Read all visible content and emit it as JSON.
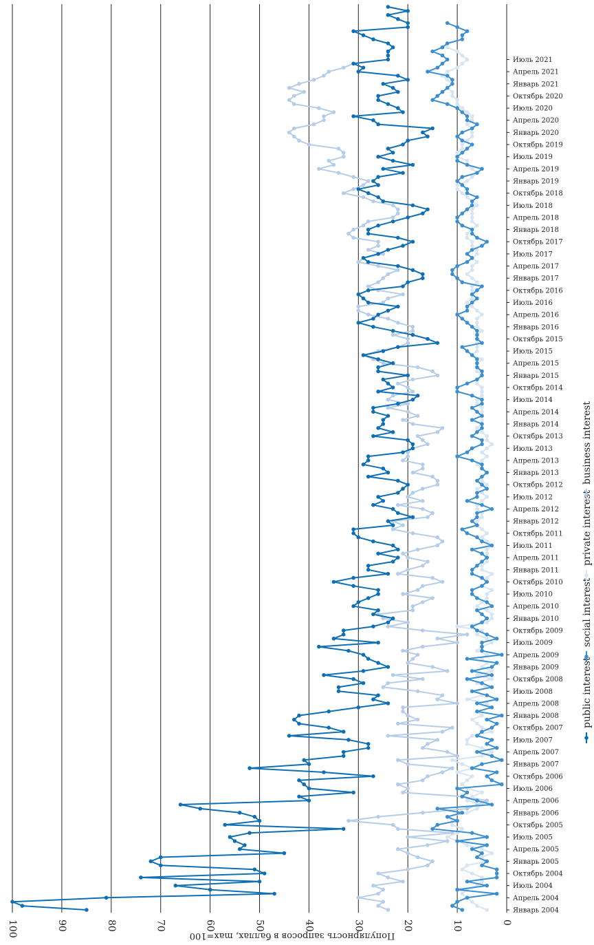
{
  "chart_data": {
    "type": "line",
    "orientation": "rotated-90-clockwise",
    "ylabel": "Популярность запросов в баллах, max=100",
    "ylim": [
      0,
      100
    ],
    "y_ticks": [
      "0",
      "10",
      "20",
      "30",
      "40",
      "50",
      "60",
      "70",
      "80",
      "90",
      "100"
    ],
    "grid": true,
    "legend_position": "right",
    "x_tick_labels": [
      "Январь 2004",
      "Апрель 2004",
      "Июль 2004",
      "Октябрь 2004",
      "Январь 2005",
      "Апрель 2005",
      "Июль 2005",
      "Октябрь 2005",
      "Январь 2006",
      "Апрель 2006",
      "Июль 2006",
      "Октябрь 2006",
      "Январь 2007",
      "Апрель 2007",
      "Июль 2007",
      "Октябрь 2007",
      "Январь 2008",
      "Апрель 2008",
      "Июль 2008",
      "Октябрь 2008",
      "Январь 2009",
      "Апрель 2009",
      "Июль 2009",
      "Октябрь 2009",
      "Январь 2010",
      "Апрель 2010",
      "Июль 2010",
      "Октябрь 2010",
      "Январь 2011",
      "Апрель 2011",
      "Июль 2011",
      "Октябрь 2011",
      "Январь 2012",
      "Апрель 2012",
      "Июль 2012",
      "Октябрь 2012",
      "Январь 2013",
      "Апрель 2013",
      "Июль 2013",
      "Октябрь 2013",
      "Январь 2014",
      "Апрель 2014",
      "Июль 2014",
      "Октябрь 2014",
      "Январь 2015",
      "Апрель 2015",
      "Июль 2015",
      "Октябрь 2015",
      "Январь 2016",
      "Апрель 2016",
      "Июль 2016",
      "Октябрь 2016",
      "Январь 2017",
      "Апрель 2017",
      "Июль 2017",
      "Октябрь 2017",
      "Январь 2018",
      "Апрель 2018",
      "Июль 2018",
      "Октябрь 2018",
      "Январь 2019",
      "Апрель 2019",
      "Июль 2019",
      "Октябрь 2019",
      "Январь 2020",
      "Апрель 2020",
      "Июль 2020",
      "Октябрь 2020",
      "Январь 2021",
      "Апрель 2021",
      "Июль 2021"
    ],
    "series": [
      {
        "name": "public interest",
        "color": "#0f6fb4",
        "values": [
          85,
          98,
          100,
          81,
          47,
          60,
          67,
          50,
          74,
          49,
          51,
          70,
          72,
          70,
          45,
          54,
          53,
          55,
          56,
          52,
          33,
          57,
          50,
          51,
          54,
          62,
          66,
          40,
          42,
          31,
          40,
          41,
          42,
          27,
          37,
          52,
          40,
          41,
          33,
          33,
          28,
          28,
          32,
          44,
          33,
          36,
          42,
          43,
          42,
          36,
          30,
          24,
          27,
          26,
          34,
          34,
          29,
          31,
          37,
          29,
          24,
          26,
          28,
          29,
          32,
          38,
          26,
          35,
          33,
          33,
          27,
          24,
          23,
          27,
          26,
          31,
          30,
          28,
          26,
          26,
          31,
          35,
          31,
          24,
          28,
          28,
          23,
          22,
          26,
          22,
          23,
          27,
          30,
          31,
          31,
          23,
          24,
          19,
          22,
          23,
          27,
          25,
          26,
          22,
          21,
          20,
          22,
          28,
          24,
          25,
          29,
          28,
          28,
          21,
          19,
          19,
          20,
          27,
          23,
          26,
          25,
          25,
          24,
          27,
          27,
          22,
          19,
          18,
          26,
          23,
          24,
          25,
          20,
          26,
          26,
          23,
          26,
          29,
          25,
          22,
          14,
          16,
          19,
          23,
          27,
          30,
          27,
          26,
          24,
          22,
          28,
          29,
          30,
          28,
          21,
          20,
          17,
          17,
          19,
          22,
          28,
          29,
          26,
          24,
          21,
          19,
          22,
          28,
          28,
          26,
          23,
          20,
          17,
          16,
          19,
          25,
          26,
          28,
          30,
          26,
          27,
          26,
          21,
          25,
          19,
          23,
          26,
          23,
          24,
          21,
          20,
          16,
          17,
          15,
          26,
          27,
          31,
          21,
          22,
          24,
          26,
          26,
          22,
          23,
          25,
          20,
          22,
          30,
          29,
          31,
          24,
          24,
          24,
          23,
          24,
          27,
          29,
          31,
          20,
          20,
          22,
          24,
          20,
          24
        ],
        "value_range": "varies"
      },
      {
        "name": "social interest",
        "color": "#3b8fd0",
        "values": [
          9,
          11,
          10,
          8,
          2,
          10,
          4,
          8,
          2,
          2,
          2,
          5,
          4,
          6,
          5,
          7,
          4,
          10,
          4,
          7,
          15,
          14,
          10,
          12,
          9,
          14,
          3,
          6,
          9,
          8,
          10,
          1,
          3,
          4,
          2,
          7,
          5,
          1,
          3,
          6,
          2,
          4,
          3,
          6,
          5,
          3,
          2,
          4,
          1,
          6,
          3,
          6,
          2,
          4,
          7,
          3,
          5,
          8,
          3,
          7,
          3,
          2,
          8,
          1,
          5,
          5,
          5,
          2,
          4,
          6,
          7,
          5,
          4,
          5,
          6,
          3,
          4,
          6,
          7,
          7,
          5,
          4,
          5,
          7,
          7,
          6,
          5,
          4,
          5,
          7,
          3,
          5,
          6,
          8,
          9,
          6,
          7,
          6,
          6,
          3,
          5,
          8,
          6,
          6,
          4,
          5,
          6,
          5,
          4,
          5,
          5,
          7,
          10,
          8,
          7,
          5,
          5,
          7,
          6,
          5,
          5,
          7,
          5,
          6,
          7,
          5,
          5,
          7,
          10,
          10,
          8,
          6,
          5,
          5,
          6,
          6,
          6,
          7,
          8,
          9,
          5,
          6,
          6,
          6,
          7,
          8,
          9,
          10,
          8,
          8,
          7,
          6,
          7,
          6,
          5,
          9,
          10,
          11,
          11,
          10,
          8,
          7,
          8,
          7,
          5,
          4,
          6,
          7,
          7,
          9,
          10,
          10,
          9,
          8,
          7,
          7,
          6,
          8,
          8,
          9,
          10,
          9,
          6,
          5,
          8,
          10,
          10,
          9,
          8,
          7,
          9,
          10,
          9,
          7,
          6,
          8,
          8,
          9,
          10,
          12,
          15,
          14,
          13,
          12,
          11,
          11,
          12,
          16,
          14,
          13,
          12,
          13,
          15,
          13,
          12,
          9,
          9,
          8,
          10,
          12
        ],
        "value_range": "varies"
      },
      {
        "name": "private interest",
        "color": "#d6e4f3",
        "values": [
          4,
          6,
          7,
          8,
          9,
          8,
          6,
          5,
          5,
          7,
          9,
          8,
          4,
          5,
          3,
          5,
          8,
          10,
          12,
          10,
          9,
          11,
          11,
          12,
          8,
          6,
          5,
          8,
          7,
          5,
          8,
          9,
          8,
          7,
          10,
          7,
          9,
          11,
          5,
          3,
          5,
          8,
          8,
          7,
          3,
          5,
          6,
          7,
          5,
          6,
          3,
          4,
          8,
          5,
          6,
          4,
          6,
          3,
          6,
          3,
          5,
          4,
          5,
          4,
          6,
          5,
          3,
          4,
          6,
          5,
          10,
          4,
          3,
          3,
          4,
          6,
          5,
          4,
          4,
          3,
          5,
          4,
          4,
          3,
          5,
          5,
          4,
          4,
          4,
          4,
          3,
          4,
          5,
          4,
          5,
          6,
          6,
          5,
          5,
          6,
          6,
          5,
          4,
          5,
          6,
          4,
          5,
          5,
          4,
          5,
          6,
          5,
          4,
          5,
          4,
          3,
          4,
          4,
          5,
          6,
          5,
          5,
          5,
          5,
          5,
          6,
          6,
          5,
          5,
          5,
          6,
          6,
          5,
          6,
          6,
          6,
          5,
          7,
          6,
          6,
          6,
          6,
          6,
          5,
          6,
          6,
          6,
          5,
          6,
          7,
          8,
          7,
          7,
          7,
          7,
          6,
          7,
          8,
          7,
          7,
          6,
          7,
          6,
          6,
          7,
          7,
          8,
          8,
          7,
          6,
          7,
          7,
          7,
          7,
          6,
          7,
          8,
          9,
          10,
          10,
          8,
          7,
          6,
          7,
          8,
          8,
          10,
          10,
          9,
          9,
          8,
          7,
          7,
          7,
          8,
          7,
          7,
          8,
          9,
          10,
          10,
          11,
          11,
          12,
          11,
          12,
          13,
          12,
          10,
          9,
          8,
          9,
          10,
          12
        ],
        "value_range": "varies"
      },
      {
        "name": "business interest",
        "color": "#b5cde9",
        "values": [
          24,
          26,
          25,
          30,
          26,
          25,
          27,
          21,
          24,
          26,
          20,
          16,
          15,
          18,
          20,
          22,
          16,
          12,
          20,
          11,
          22,
          23,
          32,
          26,
          17,
          8,
          6,
          4,
          9,
          21,
          20,
          22,
          17,
          16,
          13,
          11,
          20,
          22,
          10,
          12,
          17,
          16,
          14,
          24,
          13,
          11,
          22,
          18,
          20,
          21,
          21,
          10,
          14,
          13,
          18,
          25,
          24,
          17,
          23,
          12,
          15,
          20,
          19,
          18,
          21,
          17,
          10,
          14,
          8,
          17,
          24,
          20,
          25,
          26,
          19,
          19,
          17,
          15,
          21,
          18,
          17,
          13,
          15,
          22,
          20,
          17,
          16,
          20,
          21,
          18,
          14,
          13,
          14,
          19,
          23,
          21,
          23,
          16,
          15,
          17,
          22,
          17,
          20,
          19,
          17,
          14,
          14,
          15,
          19,
          17,
          17,
          21,
          20,
          20,
          19,
          16,
          17,
          18,
          14,
          13,
          19,
          21,
          18,
          20,
          24,
          20,
          24,
          23,
          19,
          20,
          22,
          19,
          14,
          15,
          18,
          25,
          27,
          29,
          26,
          22,
          20,
          20,
          23,
          19,
          19,
          22,
          24,
          28,
          30,
          30,
          25,
          24,
          21,
          26,
          28,
          26,
          25,
          24,
          22,
          26,
          30,
          29,
          25,
          28,
          26,
          26,
          31,
          32,
          31,
          29,
          28,
          23,
          22,
          22,
          23,
          27,
          29,
          33,
          31,
          29,
          28,
          31,
          34,
          38,
          35,
          36,
          33,
          33,
          34,
          40,
          42,
          43,
          44,
          43,
          39,
          37,
          37,
          35,
          38,
          43,
          44,
          43,
          41,
          44,
          42,
          39,
          37,
          36,
          33,
          31
        ]
      }
    ]
  },
  "legend": {
    "items": [
      {
        "label": "public interest",
        "color": "#0f6fb4"
      },
      {
        "label": "social interest",
        "color": "#3b8fd0"
      },
      {
        "label": "private interest",
        "color": "#d6e4f3"
      },
      {
        "label": "business interest",
        "color": "#b5cde9"
      }
    ]
  }
}
